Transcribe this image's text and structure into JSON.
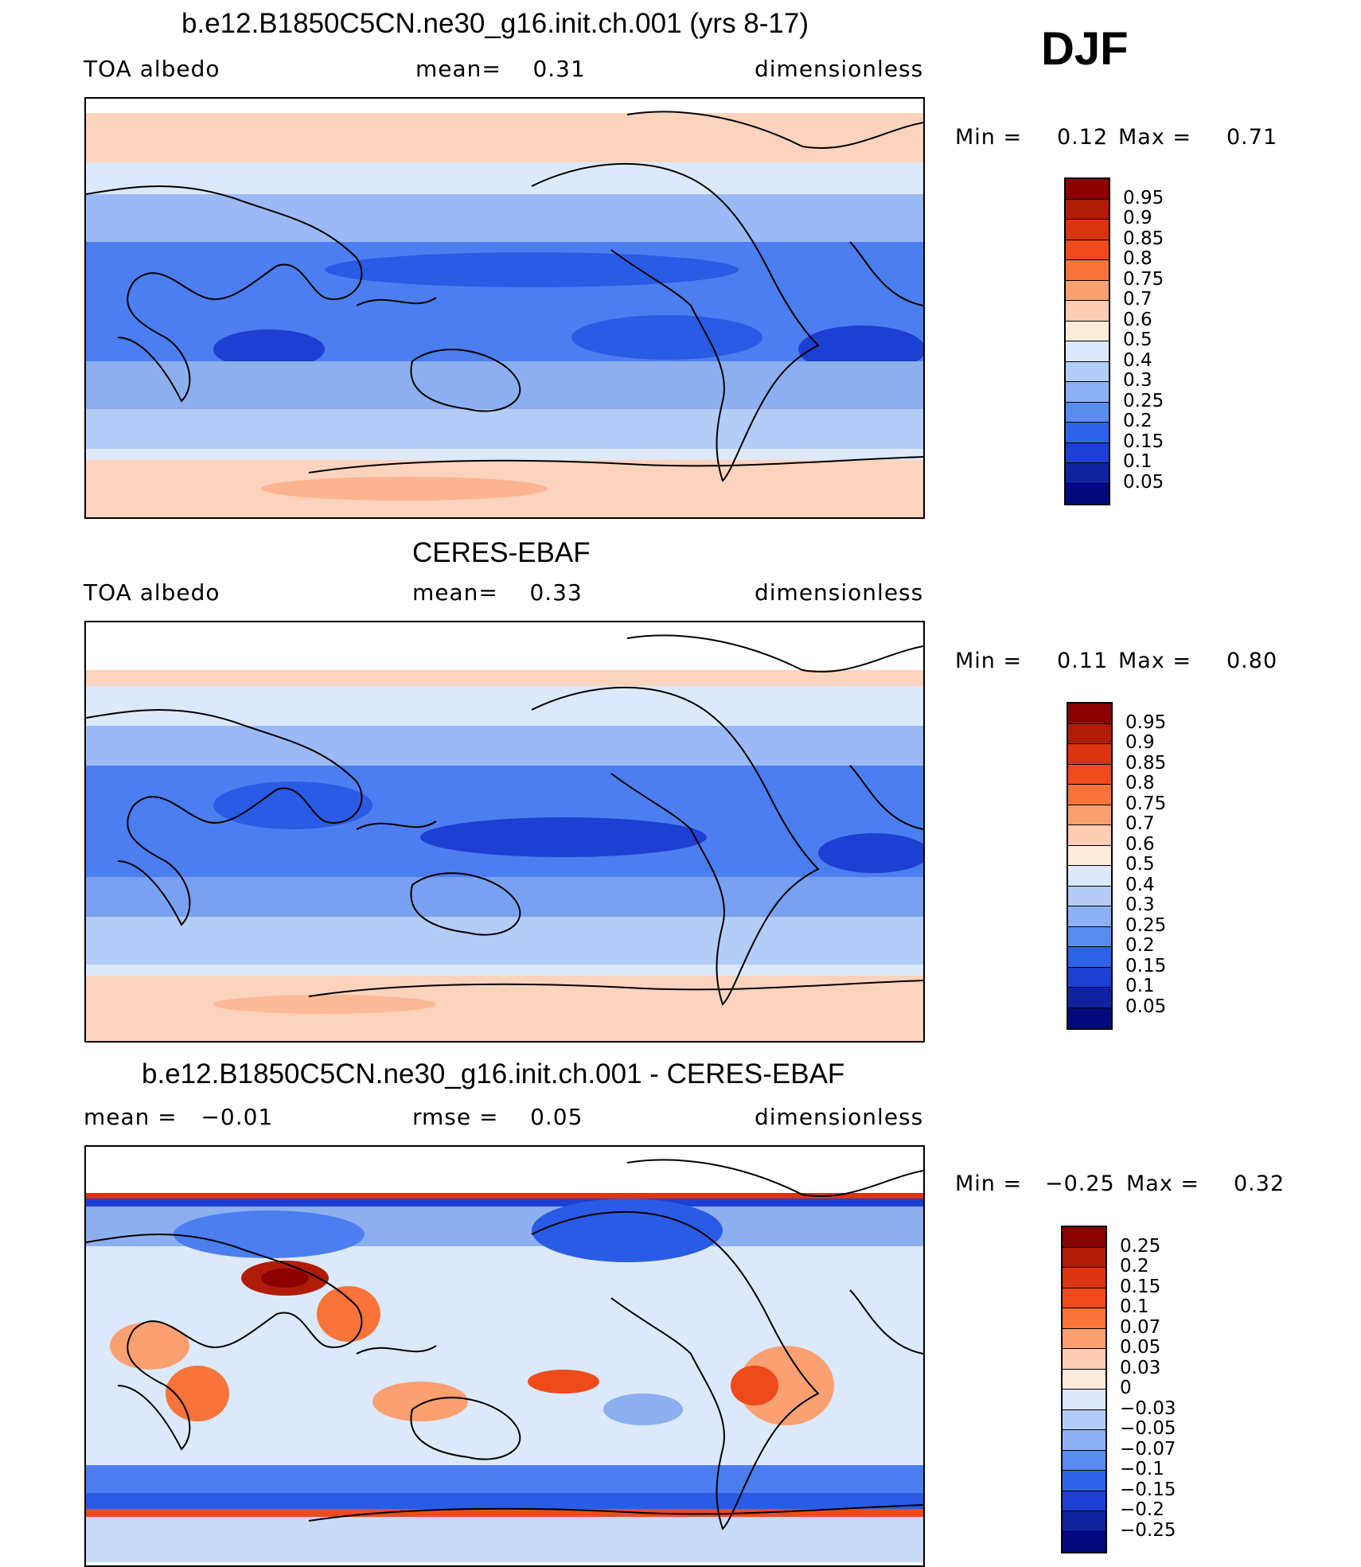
{
  "season": "DJF",
  "panels": [
    {
      "title": "b.e12.B1850C5CN.ne30_g16.init.ch.001 (yrs 8-17)",
      "left_label": "TOA albedo",
      "mid_label": "mean=    0.31",
      "right_label": "dimensionless",
      "min_label": "Min =",
      "min_value": "0.12",
      "max_label": "Max =",
      "max_value": "0.71",
      "colorbar_labels": [
        "0.95",
        "0.9",
        "0.85",
        "0.8",
        "0.75",
        "0.7",
        "0.6",
        "0.5",
        "0.4",
        "0.3",
        "0.25",
        "0.2",
        "0.15",
        "0.1",
        "0.05"
      ],
      "map_style": "model"
    },
    {
      "title": "CERES-EBAF",
      "left_label": "TOA albedo",
      "mid_label": "mean=    0.33",
      "right_label": "dimensionless",
      "min_label": "Min =",
      "min_value": "0.11",
      "max_label": "Max =",
      "max_value": "0.80",
      "colorbar_labels": [
        "0.95",
        "0.9",
        "0.85",
        "0.8",
        "0.75",
        "0.7",
        "0.6",
        "0.5",
        "0.4",
        "0.3",
        "0.25",
        "0.2",
        "0.15",
        "0.1",
        "0.05"
      ],
      "map_style": "obs"
    },
    {
      "title": "b.e12.B1850C5CN.ne30_g16.init.ch.001 - CERES-EBAF",
      "left_label": "mean =   −0.01",
      "mid_label": "rmse =    0.05",
      "right_label": "dimensionless",
      "min_label": "Min =",
      "min_value": "−0.25",
      "max_label": "Max =",
      "max_value": "0.32",
      "colorbar_labels": [
        "0.25",
        "0.2",
        "0.15",
        "0.1",
        "0.07",
        "0.05",
        "0.03",
        "0",
        "−0.03",
        "−0.05",
        "−0.07",
        "−0.1",
        "−0.15",
        "−0.2",
        "−0.25"
      ],
      "map_style": "diff"
    }
  ],
  "colorbar_colors": [
    "#8b0000",
    "#b01c08",
    "#d83510",
    "#ee4a1c",
    "#f8743a",
    "#fba071",
    "#fdcdb4",
    "#fdecdc",
    "#dbe9fa",
    "#b4cdf6",
    "#8daff4",
    "#5a8cf0",
    "#2e62e8",
    "#1d3fd2",
    "#0f22a0",
    "#000a7d"
  ]
}
